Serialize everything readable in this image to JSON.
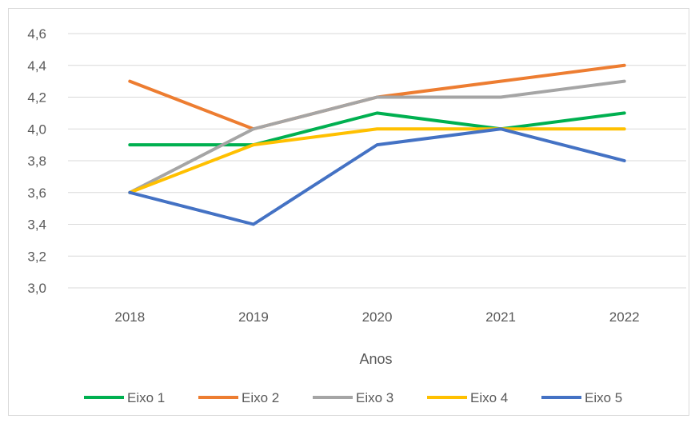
{
  "chart_data": {
    "type": "line",
    "title": "",
    "xlabel": "Anos",
    "ylabel": "",
    "categories": [
      "2018",
      "2019",
      "2020",
      "2021",
      "2022"
    ],
    "ylim": [
      3.0,
      4.6
    ],
    "yticks": [
      "3,0",
      "3,2",
      "3,4",
      "3,6",
      "3,8",
      "4,0",
      "4,2",
      "4,4",
      "4,6"
    ],
    "grid": true,
    "legend_position": "bottom",
    "series": [
      {
        "name": "Eixo 1",
        "color": "#00b050",
        "values": [
          3.9,
          3.9,
          4.1,
          4.0,
          4.1
        ]
      },
      {
        "name": "Eixo 2",
        "color": "#ed7d31",
        "values": [
          4.3,
          4.0,
          4.2,
          4.3,
          4.4
        ]
      },
      {
        "name": "Eixo 3",
        "color": "#a5a5a5",
        "values": [
          3.6,
          4.0,
          4.2,
          4.2,
          4.3
        ]
      },
      {
        "name": "Eixo 4",
        "color": "#ffc000",
        "values": [
          3.6,
          3.9,
          4.0,
          4.0,
          4.0
        ]
      },
      {
        "name": "Eixo 5",
        "color": "#4472c4",
        "values": [
          3.6,
          3.4,
          3.9,
          4.0,
          3.8
        ]
      }
    ]
  }
}
